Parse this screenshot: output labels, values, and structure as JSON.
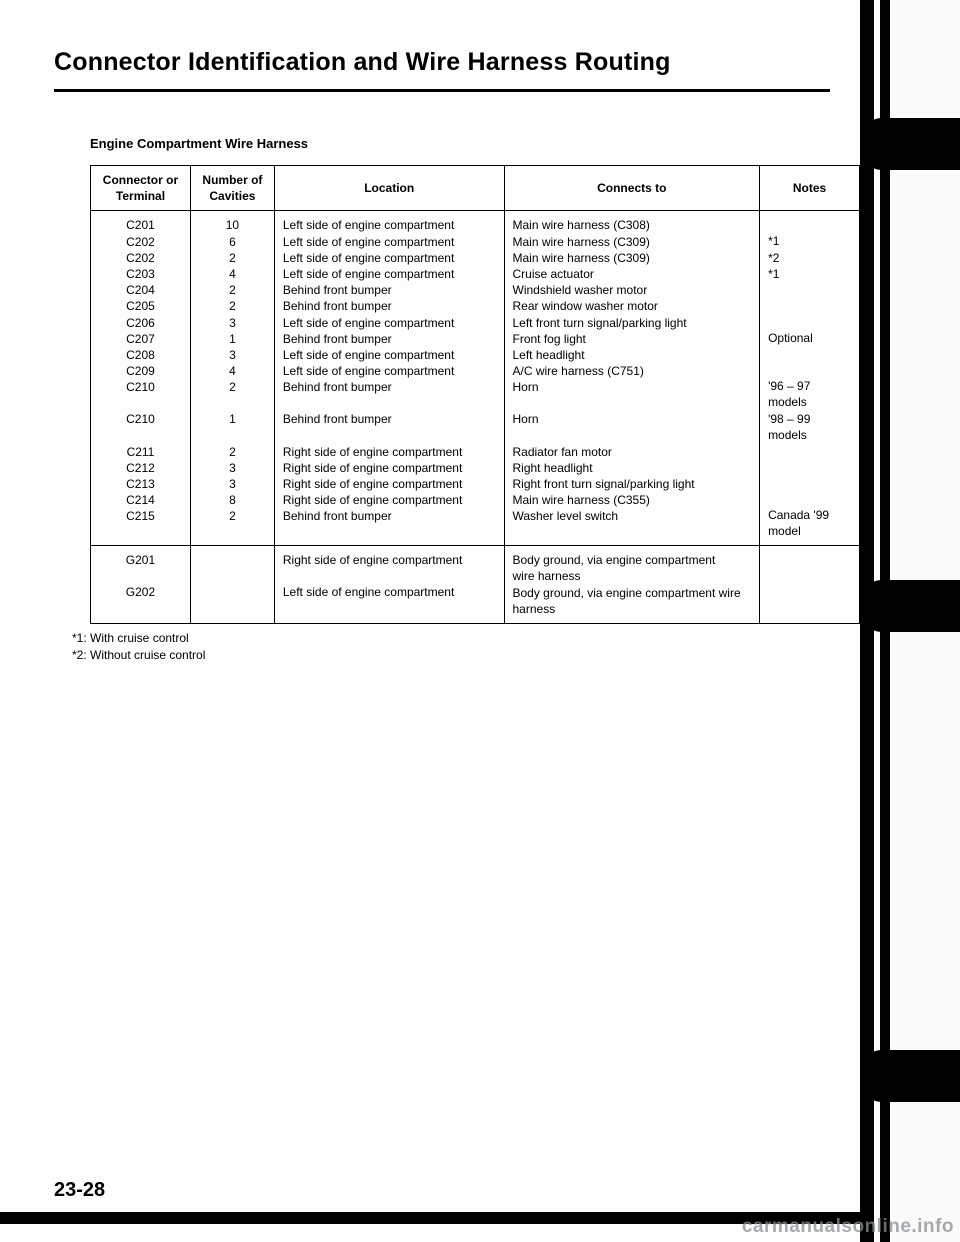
{
  "title": "Connector Identification and Wire Harness Routing",
  "subhead": "Engine Compartment Wire Harness",
  "columns": {
    "c1": "Connector or Terminal",
    "c2": "Number of Cavities",
    "c3": "Location",
    "c4": "Connects to",
    "c5": "Notes"
  },
  "section1": {
    "col1": [
      "C201",
      "C202",
      "C202",
      "C203",
      "C204",
      "C205",
      "C206",
      "C207",
      "C208",
      "C209",
      "C210",
      "",
      "C210",
      "",
      "C211",
      "C212",
      "C213",
      "C214",
      "C215"
    ],
    "col2": [
      "10",
      "6",
      "2",
      "4",
      "2",
      "2",
      "3",
      "1",
      "3",
      "4",
      "2",
      "",
      "1",
      "",
      "2",
      "3",
      "3",
      "8",
      "2"
    ],
    "col3": [
      "Left side of engine compartment",
      "Left side of engine compartment",
      "Left side of engine compartment",
      "Left side of engine compartment",
      "Behind front bumper",
      "Behind front bumper",
      "Left side of engine compartment",
      "Behind front bumper",
      "Left side of engine compartment",
      "Left side of engine compartment",
      "Behind front bumper",
      "",
      "Behind front bumper",
      "",
      "Right side of engine compartment",
      "Right side of engine compartment",
      "Right side of engine compartment",
      "Right side of engine compartment",
      "Behind front bumper"
    ],
    "col4": [
      "Main wire harness (C308)",
      "Main wire harness (C309)",
      "Main wire harness (C309)",
      "Cruise actuator",
      "Windshield washer motor",
      "Rear window washer motor",
      "Left front turn signal/parking light",
      "Front fog light",
      "Left headlight",
      "A/C wire harness (C751)",
      "Horn",
      "",
      "Horn",
      "",
      "Radiator fan motor",
      "Right headlight",
      "Right front turn signal/parking light",
      "Main wire harness (C355)",
      "Washer level switch"
    ],
    "col5": [
      "",
      "*1",
      "*2",
      "*1",
      "",
      "",
      "",
      "Optional",
      "",
      "",
      "'96 – 97",
      "models",
      "'98 – 99",
      "models",
      "",
      "",
      "",
      "",
      "Canada '99 model"
    ]
  },
  "section2": {
    "col1": [
      "G201",
      "",
      "G202"
    ],
    "col2": [
      "",
      "",
      ""
    ],
    "col3": [
      "Right side of engine compartment",
      "",
      "Left side of engine compartment"
    ],
    "col4": [
      "Body ground, via engine compartment",
      "wire harness",
      "Body ground, via engine compartment wire harness"
    ],
    "col5": [
      "",
      "",
      ""
    ]
  },
  "footnotes": [
    "*1: With cruise control",
    "*2: Without cruise control"
  ],
  "page_number": "23-28",
  "watermark": "carmanualsonline.info"
}
